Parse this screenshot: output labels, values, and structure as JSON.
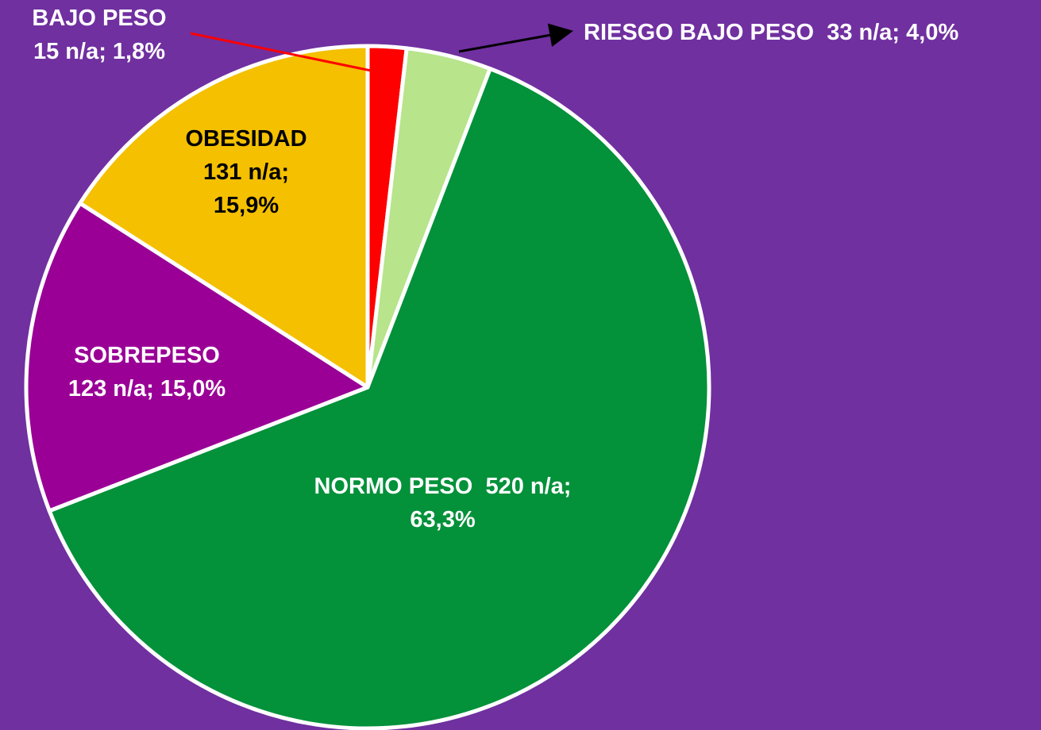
{
  "chart_data": {
    "type": "pie",
    "categories": [
      "BAJO PESO",
      "RIESGO BAJO PESO",
      "NORMO PESO",
      "SOBREPESO",
      "OBESIDAD"
    ],
    "values": [
      15,
      33,
      520,
      123,
      131
    ],
    "value_labels": [
      "15 n/a; 1,8%",
      "33 n/a; 4,0%",
      "520 n/a; 63,3%",
      "123 n/a; 15,0%",
      "131 n/a; 15,9%"
    ],
    "colors": [
      "#ff0000",
      "#b8e48c",
      "#03913a",
      "#9a0096",
      "#f4c000"
    ]
  }
}
